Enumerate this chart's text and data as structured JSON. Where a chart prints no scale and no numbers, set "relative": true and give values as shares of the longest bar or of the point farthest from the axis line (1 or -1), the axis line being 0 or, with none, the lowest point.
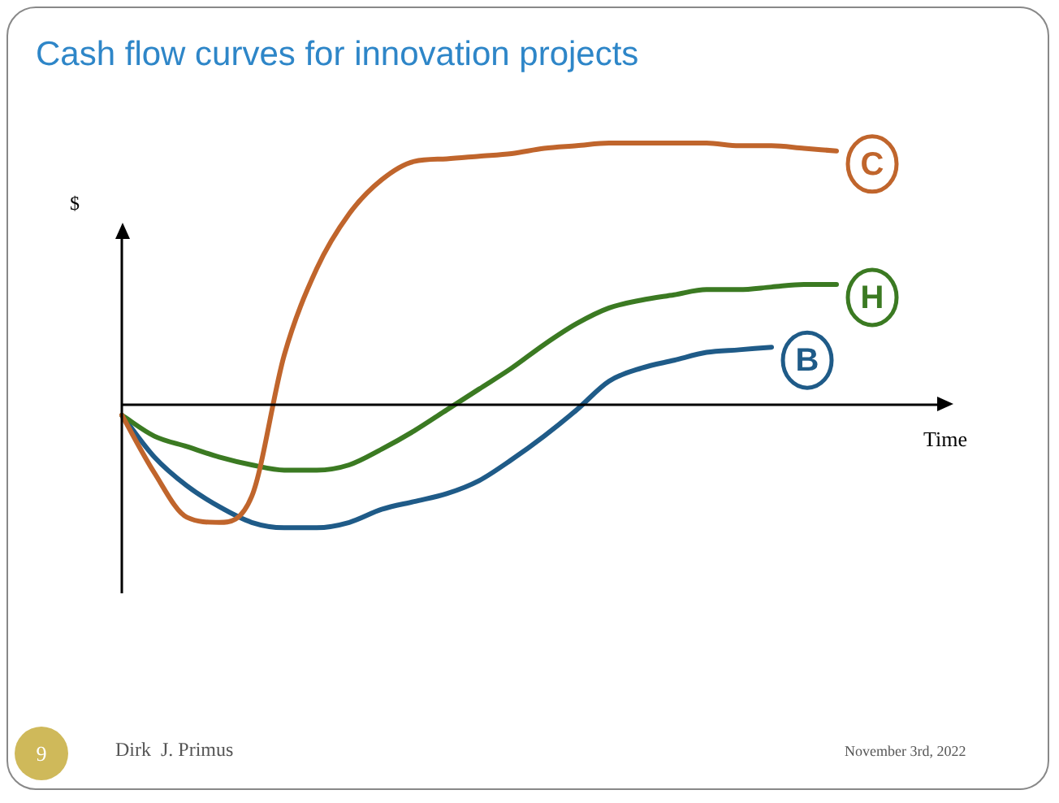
{
  "chart_data": {
    "type": "line",
    "title": "Cash flow curves for innovation projects",
    "xlabel": "Time",
    "ylabel": "$",
    "relative": true,
    "legend": false,
    "grid": false,
    "marker": "none",
    "line_style": "solid",
    "categories": [
      null,
      null,
      null,
      null,
      null,
      null,
      null,
      null,
      null,
      null,
      null,
      null,
      null,
      null,
      null,
      null,
      null,
      null,
      null,
      null,
      null,
      null,
      null
    ],
    "series": [
      {
        "name": "C",
        "color": "#c0652c",
        "values": [
          -0.04,
          -0.26,
          -0.43,
          -0.45,
          -0.35,
          0.19,
          0.52,
          0.73,
          0.86,
          0.93,
          0.94,
          0.95,
          0.96,
          0.98,
          0.99,
          1.0,
          1.0,
          1.0,
          1.0,
          0.99,
          0.99,
          0.98,
          0.97
        ]
      },
      {
        "name": "H",
        "color": "#3b7a22",
        "values": [
          -0.04,
          -0.12,
          -0.16,
          -0.2,
          -0.23,
          -0.25,
          -0.25,
          -0.23,
          -0.17,
          -0.1,
          -0.02,
          0.06,
          0.14,
          0.23,
          0.31,
          0.37,
          0.4,
          0.42,
          0.44,
          0.44,
          0.45,
          0.46,
          0.46
        ]
      },
      {
        "name": "B",
        "color": "#1f5b88",
        "values": [
          -0.04,
          -0.2,
          -0.31,
          -0.39,
          -0.45,
          -0.47,
          -0.47,
          -0.45,
          -0.4,
          -0.37,
          -0.34,
          -0.29,
          -0.21,
          -0.12,
          -0.02,
          0.09,
          0.14,
          0.17,
          0.2,
          0.21,
          0.22,
          null,
          null
        ]
      }
    ],
    "annotations": [
      "9",
      "Dirk  J. Primus",
      "November 3rd, 2022"
    ]
  }
}
